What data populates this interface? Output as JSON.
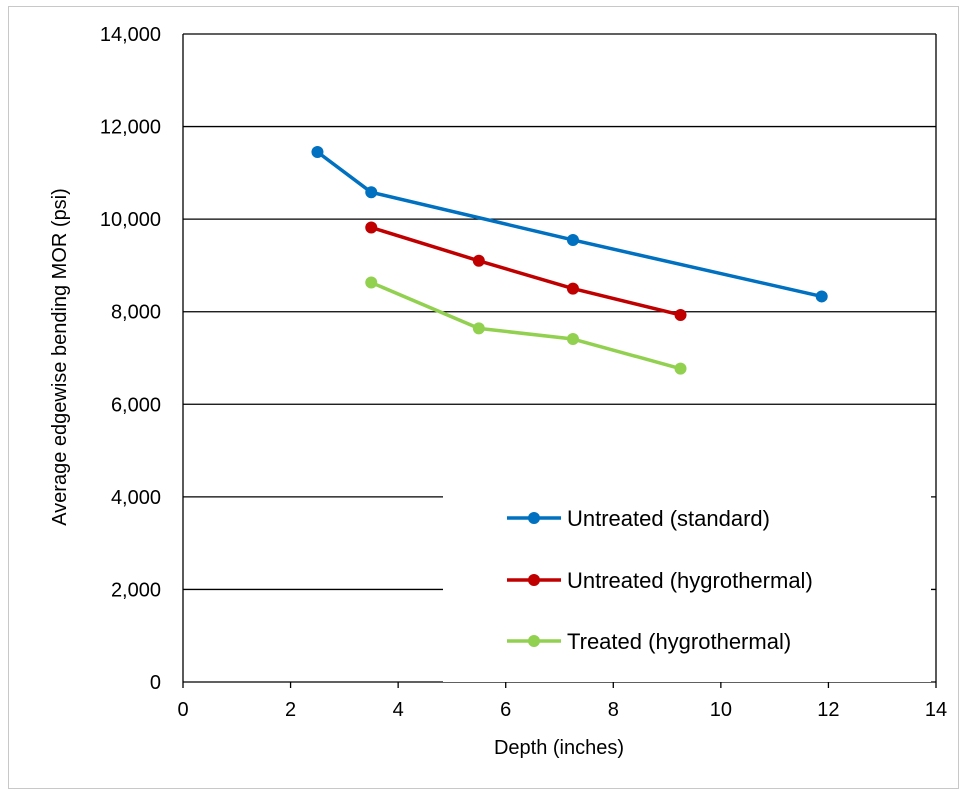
{
  "chart_data": {
    "type": "line",
    "title": "",
    "xlabel": "Depth (inches)",
    "ylabel": "Average edgewise bending MOR (psi)",
    "xlim": [
      0,
      14
    ],
    "ylim": [
      0,
      14000
    ],
    "x_ticks": [
      0,
      2,
      4,
      6,
      8,
      10,
      12,
      14
    ],
    "y_ticks": [
      0,
      2000,
      4000,
      6000,
      8000,
      10000,
      12000,
      14000
    ],
    "x_tick_labels": [
      "0",
      "2",
      "4",
      "6",
      "8",
      "10",
      "12",
      "14"
    ],
    "y_tick_labels": [
      "0",
      "2,000",
      "4,000",
      "6,000",
      "8,000",
      "10,000",
      "12,000",
      "14,000"
    ],
    "grid": "horizontal",
    "legend_position": "bottom-right",
    "series": [
      {
        "name": "Untreated (standard)",
        "color": "#0070C0",
        "x": [
          2.5,
          3.5,
          7.25,
          11.875
        ],
        "y": [
          11450,
          10580,
          9550,
          8330
        ]
      },
      {
        "name": "Untreated (hygrothermal)",
        "color": "#C00000",
        "x": [
          3.5,
          5.5,
          7.25,
          9.25
        ],
        "y": [
          9820,
          9100,
          8500,
          7930
        ]
      },
      {
        "name": "Treated (hygrothermal)",
        "color": "#92D050",
        "x": [
          3.5,
          5.5,
          7.25,
          9.25
        ],
        "y": [
          8630,
          7640,
          7410,
          6770
        ]
      }
    ]
  }
}
